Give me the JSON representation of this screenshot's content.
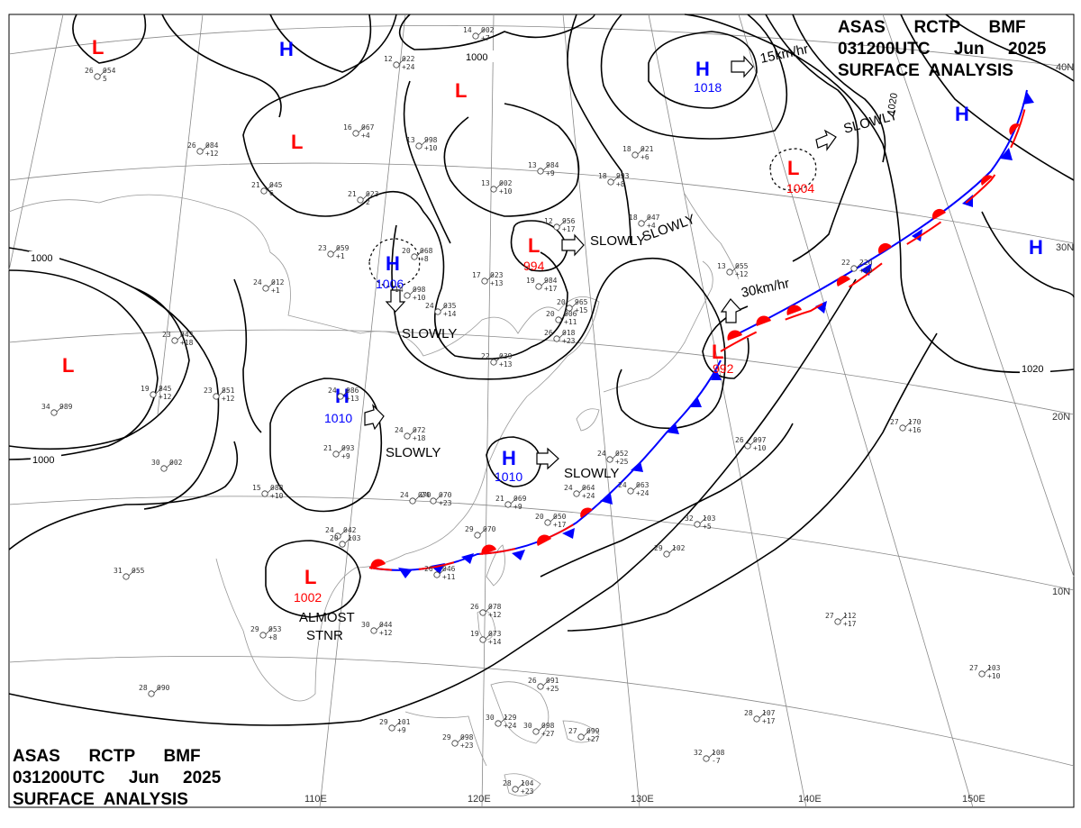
{
  "header": {
    "top_right": [
      "ASAS      RCTP      BMF",
      "031200UTC     Jun     2025",
      "SURFACE  ANALYSIS"
    ],
    "bottom_left": [
      "ASAS      RCTP      BMF",
      "031200UTC     Jun     2025",
      "SURFACE  ANALYSIS"
    ]
  },
  "graticule": {
    "lat_labels": [
      "40N",
      "30N",
      "20N",
      "10N"
    ],
    "lon_labels": [
      "110E",
      "120E",
      "130E",
      "140E",
      "150E"
    ]
  },
  "isobar_labels": [
    "1000",
    "1000",
    "1000",
    "1020",
    "1020"
  ],
  "colors": {
    "low": "#ff0000",
    "high": "#0000ff",
    "warm_front": "#ff0000",
    "cold_front": "#0000ff",
    "line": "#000000"
  },
  "systems": [
    {
      "type": "L",
      "value": ""
    },
    {
      "type": "H",
      "value": ""
    },
    {
      "type": "L",
      "value": ""
    },
    {
      "type": "L",
      "value": ""
    },
    {
      "type": "H",
      "value": "1018"
    },
    {
      "type": "L",
      "value": "1004"
    },
    {
      "type": "H",
      "value": ""
    },
    {
      "type": "H",
      "value": "1006"
    },
    {
      "type": "L",
      "value": "994"
    },
    {
      "type": "L",
      "value": ""
    },
    {
      "type": "H",
      "value": "1010"
    },
    {
      "type": "H",
      "value": "1010"
    },
    {
      "type": "L",
      "value": "992"
    },
    {
      "type": "L",
      "value": "1002"
    },
    {
      "type": "H",
      "value": ""
    }
  ],
  "motion_labels": [
    "15km/hr",
    "SLOWLY",
    "SLOWLY",
    "30km/hr",
    "SLOWLY",
    "SLOWLY",
    "SLOWLY",
    "SLOWLY",
    "ALMOST",
    "STNR"
  ],
  "stations": [
    {
      "t": "26",
      "p": "054",
      "c": "5"
    },
    {
      "t": "14",
      "p": "002",
      "c": "+7"
    },
    {
      "t": "12",
      "p": "022",
      "c": "+24"
    },
    {
      "t": "16",
      "p": "067",
      "c": "+4"
    },
    {
      "t": "26",
      "p": "084",
      "c": "+12"
    },
    {
      "t": "21",
      "p": "045",
      "c": "6"
    },
    {
      "t": "21",
      "p": "023",
      "c": "2"
    },
    {
      "t": "13",
      "p": "998",
      "c": "+10"
    },
    {
      "t": "13",
      "p": "002",
      "c": "+10"
    },
    {
      "t": "13",
      "p": "984",
      "c": "+9"
    },
    {
      "t": "18",
      "p": "021",
      "c": "+6"
    },
    {
      "t": "18",
      "p": "993",
      "c": "+8"
    },
    {
      "t": "23",
      "p": "059",
      "c": "+1"
    },
    {
      "t": "20",
      "p": "068",
      "c": "+8"
    },
    {
      "t": "24",
      "p": "012",
      "c": "+1"
    },
    {
      "t": "12",
      "p": "956",
      "c": "+17"
    },
    {
      "t": "18",
      "p": "047",
      "c": "+4"
    },
    {
      "t": "17",
      "p": "023",
      "c": "+13"
    },
    {
      "t": "19",
      "p": "984",
      "c": "+17"
    },
    {
      "t": "14",
      "p": "098",
      "c": "+10"
    },
    {
      "t": "24",
      "p": "035",
      "c": "+14"
    },
    {
      "t": "20",
      "p": "965",
      "c": "+15"
    },
    {
      "t": "20",
      "p": "006",
      "c": "+11"
    },
    {
      "t": "26",
      "p": "018",
      "c": "+23"
    },
    {
      "t": "22",
      "p": "039",
      "c": "+13"
    },
    {
      "t": "13",
      "p": "055",
      "c": "+12"
    },
    {
      "t": "22",
      "p": "220",
      "c": "+20"
    },
    {
      "t": "23",
      "p": "043",
      "c": "+18"
    },
    {
      "t": "19",
      "p": "845",
      "c": "+12"
    },
    {
      "t": "23",
      "p": "851",
      "c": "+12"
    },
    {
      "t": "34",
      "p": "989",
      "c": ""
    },
    {
      "t": "24",
      "p": "086",
      "c": "+13"
    },
    {
      "t": "24",
      "p": "072",
      "c": "+18"
    },
    {
      "t": "21",
      "p": "093",
      "c": "+9"
    },
    {
      "t": "30",
      "p": "002",
      "c": ""
    },
    {
      "t": "24",
      "p": "070",
      "c": ""
    },
    {
      "t": "24",
      "p": "052",
      "c": "+25"
    },
    {
      "t": "24",
      "p": "064",
      "c": "+24"
    },
    {
      "t": "24",
      "p": "063",
      "c": "+24"
    },
    {
      "t": "15",
      "p": "088",
      "c": "+10"
    },
    {
      "t": "24",
      "p": "070",
      "c": "+23"
    },
    {
      "t": "21",
      "p": "069",
      "c": "+9"
    },
    {
      "t": "20",
      "p": "050",
      "c": "+17"
    },
    {
      "t": "24",
      "p": "042",
      "c": ""
    },
    {
      "t": "26",
      "p": "046",
      "c": "+11"
    },
    {
      "t": "32",
      "p": "103",
      "c": "+5"
    },
    {
      "t": "29",
      "p": "102",
      "c": ""
    },
    {
      "t": "27",
      "p": "170",
      "c": "+16"
    },
    {
      "t": "26",
      "p": "097",
      "c": "+10"
    },
    {
      "t": "31",
      "p": "055",
      "c": ""
    },
    {
      "t": "29",
      "p": "053",
      "c": "+8"
    },
    {
      "t": "30",
      "p": "044",
      "c": "+12"
    },
    {
      "t": "26",
      "p": "078",
      "c": "+12"
    },
    {
      "t": "19",
      "p": "073",
      "c": "+14"
    },
    {
      "t": "27",
      "p": "112",
      "c": "+17"
    },
    {
      "t": "27",
      "p": "103",
      "c": "+10"
    },
    {
      "t": "28",
      "p": "090",
      "c": ""
    },
    {
      "t": "26",
      "p": "091",
      "c": "+25"
    },
    {
      "t": "29",
      "p": "101",
      "c": "+9"
    },
    {
      "t": "29",
      "p": "098",
      "c": "+23"
    },
    {
      "t": "30",
      "p": "129",
      "c": "+24"
    },
    {
      "t": "30",
      "p": "098",
      "c": "+27"
    },
    {
      "t": "27",
      "p": "099",
      "c": "+27"
    },
    {
      "t": "28",
      "p": "107",
      "c": "+17"
    },
    {
      "t": "32",
      "p": "108",
      "c": "-7"
    },
    {
      "t": "28",
      "p": "104",
      "c": "+23"
    },
    {
      "t": "29",
      "p": "070",
      "c": ""
    },
    {
      "t": "20",
      "p": "103",
      "c": ""
    }
  ]
}
